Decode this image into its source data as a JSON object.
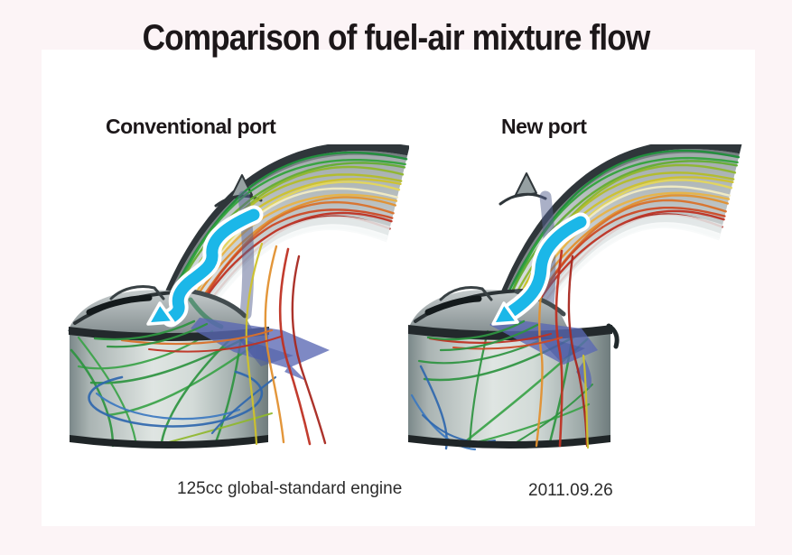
{
  "page": {
    "title": "Comparison of fuel-air mixture flow",
    "caption_engine": "125cc global-standard engine",
    "caption_date": "2011.09.26"
  },
  "figures": {
    "left": {
      "label": "Conventional port"
    },
    "right": {
      "label": "New port"
    }
  },
  "colors": {
    "page_background": "#fcf4f6",
    "content_background": "#ffffff",
    "title_text": "#1c1719",
    "body_text": "#2b2b2b",
    "flow_arrow": "#1bb7e8",
    "flow_arrow_outline": "#ffffff",
    "valve_plane": "#5a68b4",
    "valve_plane_shadow": "#3f4f9e",
    "port_metal_light": "#c6cccd",
    "port_metal_dark": "#9ba4a6",
    "port_edge": "#2f363a",
    "cylinder_rim": "#23292c",
    "cylinder_bottom": "#1f2527",
    "inner_green": "#2e9440",
    "inner_green2": "#3aa348",
    "inner_blue": "#2f67ae",
    "inner_blue2": "#3c78c0",
    "streamline_palette": [
      "#1f8f3a",
      "#33a33c",
      "#63ad33",
      "#8fb72d",
      "#b3bd28",
      "#cfc22b",
      "#e4d65c",
      "#f2ecc4",
      "#e8b345",
      "#e2902f",
      "#d9712a",
      "#cc4a26",
      "#bf3123",
      "#a82820"
    ]
  }
}
